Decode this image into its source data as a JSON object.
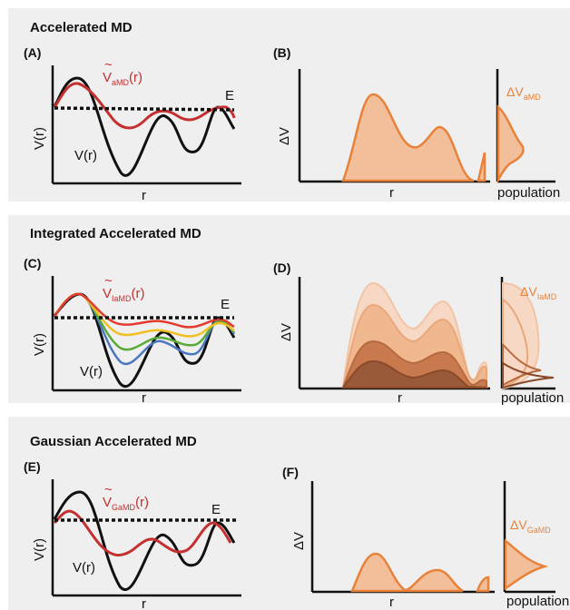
{
  "sections": [
    {
      "title": "Accelerated MD",
      "left": {
        "label": "(A)",
        "ylabel": "V(r)",
        "xlabel": "r",
        "boost_tilde": "~",
        "boost_main": "V",
        "boost_sub": "aMD",
        "boost_arg": "(r)",
        "potential_label": "V(r)",
        "threshold_label": "E"
      },
      "right": {
        "label": "(B)",
        "ylabel": "ΔV",
        "xlabel": "r",
        "hist_main": "ΔV",
        "hist_sub": "aMD",
        "hist_xlabel": "population"
      }
    },
    {
      "title": "Integrated Accelerated MD",
      "left": {
        "label": "(C)",
        "ylabel": "V(r)",
        "xlabel": "r",
        "boost_tilde": "~",
        "boost_main": "V",
        "boost_sub": "IaMD",
        "boost_arg": "(r)",
        "potential_label": "V(r)",
        "threshold_label": "E"
      },
      "right": {
        "label": "(D)",
        "ylabel": "ΔV",
        "xlabel": "r",
        "hist_main": "ΔV",
        "hist_sub": "IaMD",
        "hist_xlabel": "population"
      }
    },
    {
      "title": "Gaussian Accelerated MD",
      "left": {
        "label": "(E)",
        "ylabel": "V(r)",
        "xlabel": "r",
        "boost_tilde": "~",
        "boost_main": "V",
        "boost_sub": "GaMD",
        "boost_arg": "(r)",
        "potential_label": "V(r)",
        "threshold_label": "E"
      },
      "right": {
        "label": "(F)",
        "ylabel": "ΔV",
        "xlabel": "r",
        "hist_main": "ΔV",
        "hist_sub": "GaMD",
        "hist_xlabel": "population"
      }
    }
  ],
  "colors": {
    "background": "#efefef",
    "boost": "#c43030",
    "orange": "#e8823a",
    "orange_fill": "#f3bf9b",
    "iamd_levels": [
      "#e33b2e",
      "#f0c020",
      "#5aaa3a",
      "#4a78c0"
    ],
    "shade_levels": [
      "#f6d8c4",
      "#efb88f",
      "#c87a4e",
      "#9a5a3a"
    ]
  }
}
